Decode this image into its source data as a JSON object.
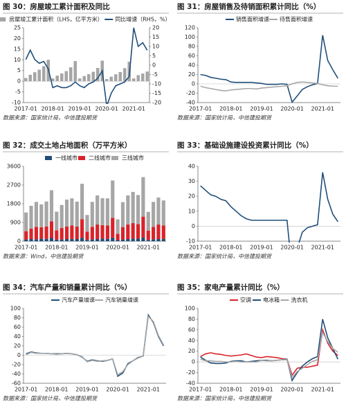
{
  "chart_data": [
    {
      "type": "combo",
      "title": "图 30：房屋竣工累计面积及同比",
      "source": "数据来源：国家统计局，中信建投期货",
      "categories": [
        "2017-01",
        null,
        null,
        null,
        null,
        null,
        "2018-01",
        null,
        null,
        null,
        null,
        null,
        "2019-01",
        null,
        null,
        null,
        null,
        null,
        "2020-01",
        null,
        null,
        null,
        null,
        null,
        "2021-01",
        null,
        null,
        null
      ],
      "ylim": [
        -10,
        25
      ],
      "yticks": [
        -10,
        -5,
        0,
        5,
        10,
        15,
        20,
        25
      ],
      "y2lim": [
        -20,
        20
      ],
      "y2ticks": [
        -20,
        -15,
        -10,
        -5,
        0,
        5,
        10,
        15,
        20
      ],
      "series": [
        {
          "name": "房屋竣工累计面积（LHS，亿平方米）",
          "type": "bar",
          "color": "#a6a6a6",
          "values": [
            1.5,
            3.0,
            4.2,
            5.4,
            7.0,
            10.0,
            1.3,
            2.6,
            3.6,
            4.7,
            6.5,
            9.4,
            1.3,
            2.4,
            3.3,
            4.4,
            6.2,
            9.6,
            1.0,
            2.1,
            3.2,
            4.3,
            6.1,
            9.1,
            1.3,
            2.8,
            3.6,
            4.5
          ]
        },
        {
          "name": "同比增速（RHS，%）",
          "type": "line",
          "axis": "y2",
          "color": "#1f4e79",
          "values": [
            3,
            8,
            3,
            1,
            2,
            -2,
            -12,
            -11,
            -12,
            -12,
            -11,
            -9,
            -11,
            -12,
            -10,
            -9,
            -7,
            -3,
            -22,
            -15,
            -11,
            -10,
            -9,
            -6,
            20,
            10,
            12,
            8
          ]
        }
      ]
    },
    {
      "type": "line",
      "title": "图 31：房屋销售及待销面积累计同比（%）",
      "source": "数据来源：国家统计局，中信建投期货",
      "categories": [
        "2017-01",
        null,
        null,
        null,
        null,
        null,
        "2018-01",
        null,
        null,
        null,
        null,
        null,
        "2019-01",
        null,
        null,
        null,
        null,
        null,
        "2020-01",
        null,
        null,
        null,
        null,
        null,
        "2021-01",
        null,
        null,
        null
      ],
      "ylim": [
        -40,
        120
      ],
      "yticks": [
        -40,
        -20,
        0,
        20,
        40,
        60,
        80,
        100,
        120
      ],
      "series": [
        {
          "name": "销售面积增速",
          "color": "#1f4e79",
          "values": [
            20,
            18,
            14,
            12,
            10,
            9,
            4,
            3,
            3,
            3,
            3,
            2,
            1,
            -1,
            -1,
            -1,
            0,
            -1,
            -39,
            -26,
            -12,
            -6,
            -2,
            1,
            104,
            50,
            30,
            12
          ]
        },
        {
          "name": "待售面积增速",
          "color": "#a6a6a6",
          "values": [
            -5,
            -8,
            -10,
            -12,
            -14,
            -15,
            -13,
            -12,
            -11,
            -10,
            -10,
            -11,
            -9,
            -8,
            -7,
            -6,
            -5,
            -4,
            0,
            3,
            4,
            3,
            2,
            1,
            -2,
            -4,
            -5,
            -5
          ]
        }
      ]
    },
    {
      "type": "bar",
      "stacked": true,
      "title": "图 32：成交土地占地面积（万平方米）",
      "source": "数据来源：Wind，中信建投期货",
      "categories": [
        "2017-01",
        null,
        null,
        null,
        null,
        null,
        "2018-01",
        null,
        null,
        null,
        null,
        null,
        "2019-01",
        null,
        null,
        null,
        null,
        null,
        "2020-01",
        null,
        null,
        null,
        null,
        null,
        "2021-01",
        null,
        null,
        null
      ],
      "ylim": [
        0,
        3600
      ],
      "yticks": [
        0,
        900,
        1800,
        2700,
        3600
      ],
      "series": [
        {
          "name": "一线城市",
          "color": "#1f4e79",
          "values": [
            80,
            100,
            90,
            120,
            110,
            150,
            70,
            90,
            100,
            110,
            100,
            160,
            60,
            90,
            100,
            120,
            110,
            170,
            50,
            80,
            100,
            120,
            120,
            180,
            60,
            90,
            100,
            110
          ]
        },
        {
          "name": "二线城市",
          "color": "#d9232a",
          "values": [
            400,
            500,
            600,
            550,
            600,
            800,
            450,
            550,
            600,
            650,
            600,
            900,
            400,
            600,
            700,
            650,
            650,
            950,
            300,
            600,
            700,
            750,
            700,
            1000,
            450,
            600,
            700,
            650
          ]
        },
        {
          "name": "三线城市",
          "color": "#a6a6a6",
          "values": [
            900,
            1100,
            1200,
            1100,
            1200,
            1500,
            900,
            1100,
            1300,
            1300,
            1200,
            1700,
            800,
            1200,
            1400,
            1300,
            1300,
            1800,
            700,
            1200,
            1400,
            1500,
            1400,
            1900,
            900,
            1200,
            1300,
            1200
          ]
        }
      ]
    },
    {
      "type": "line",
      "title": "图 33：基础设施建设投资累计同比（%）",
      "source": "数据来源：国家统计局，中信建投期货",
      "categories": [
        "2017-01",
        null,
        null,
        null,
        null,
        null,
        "2018-01",
        null,
        null,
        null,
        null,
        null,
        "2019-01",
        null,
        null,
        null,
        null,
        null,
        "2020-01",
        null,
        null,
        null,
        null,
        null,
        "2021-01",
        null,
        null,
        null
      ],
      "ylim": [
        -10,
        40
      ],
      "yticks": [
        -10,
        0,
        10,
        20,
        30,
        40
      ],
      "color": "#1f4e79",
      "values": [
        27,
        24,
        21,
        20,
        18,
        17,
        13,
        10,
        7,
        5,
        4,
        4,
        4,
        4,
        4,
        4,
        4,
        4,
        -30,
        -15,
        -4,
        -1,
        0,
        1,
        36,
        18,
        8,
        3
      ]
    },
    {
      "type": "line",
      "title": "图 34：汽车产量和销量累计同比（%）",
      "source": "数据来源：国家统计局，中信建投期货",
      "categories": [
        "2017-01",
        null,
        null,
        null,
        null,
        null,
        "2018-01",
        null,
        null,
        null,
        null,
        null,
        "2019-01",
        null,
        null,
        null,
        null,
        null,
        "2020-01",
        null,
        null,
        null,
        null,
        null,
        "2021-01",
        null,
        null,
        null
      ],
      "ylim": [
        -60,
        100
      ],
      "yticks": [
        -60,
        -40,
        -20,
        0,
        20,
        40,
        60,
        80,
        100
      ],
      "series": [
        {
          "name": "汽车产量增速",
          "color": "#1f4e79",
          "values": [
            3,
            7,
            5,
            4,
            4,
            3,
            3,
            3,
            4,
            3,
            1,
            -4,
            -13,
            -10,
            -12,
            -13,
            -11,
            -8,
            -45,
            -38,
            -18,
            -12,
            -5,
            -2,
            86,
            70,
            40,
            20
          ]
        },
        {
          "name": "汽车销量增速",
          "color": "#a6a6a6",
          "values": [
            1,
            6,
            4,
            4,
            4,
            3,
            2,
            3,
            4,
            3,
            1,
            -3,
            -14,
            -11,
            -13,
            -12,
            -11,
            -8,
            -42,
            -35,
            -20,
            -12,
            -6,
            -2,
            83,
            72,
            42,
            22
          ]
        }
      ]
    },
    {
      "type": "line",
      "title": "图 35：家电产量累计同比（%）",
      "source": "数据来源：国家统计局，中信建投期货",
      "categories": [
        "2017-01",
        null,
        null,
        null,
        null,
        null,
        "2018-01",
        null,
        null,
        null,
        null,
        null,
        "2019-01",
        null,
        null,
        null,
        null,
        null,
        "2020-01",
        null,
        null,
        null,
        null,
        null,
        "2021-01",
        null,
        null,
        null
      ],
      "ylim": [
        -40,
        100
      ],
      "yticks": [
        -40,
        -20,
        0,
        20,
        40,
        60,
        80,
        100
      ],
      "series": [
        {
          "name": "空调",
          "color": "#d9232a",
          "values": [
            10,
            15,
            17,
            15,
            14,
            12,
            11,
            12,
            13,
            15,
            12,
            9,
            8,
            10,
            9,
            8,
            6,
            5,
            -25,
            -12,
            -10,
            -10,
            -8,
            -6,
            60,
            35,
            20,
            12
          ]
        },
        {
          "name": "电冰箱",
          "color": "#1f4e79",
          "values": [
            9,
            3,
            -2,
            -3,
            -3,
            -2,
            1,
            2,
            2,
            0,
            1,
            2,
            3,
            3,
            2,
            3,
            4,
            5,
            -35,
            -20,
            -8,
            0,
            6,
            10,
            80,
            45,
            25,
            5
          ]
        },
        {
          "name": "洗衣机",
          "color": "#a6a6a6",
          "values": [
            5,
            2,
            2,
            1,
            1,
            0,
            0,
            1,
            0,
            0,
            0,
            0,
            3,
            2,
            2,
            3,
            4,
            4,
            -30,
            -18,
            -12,
            -5,
            1,
            4,
            55,
            38,
            25,
            18
          ]
        }
      ]
    }
  ]
}
